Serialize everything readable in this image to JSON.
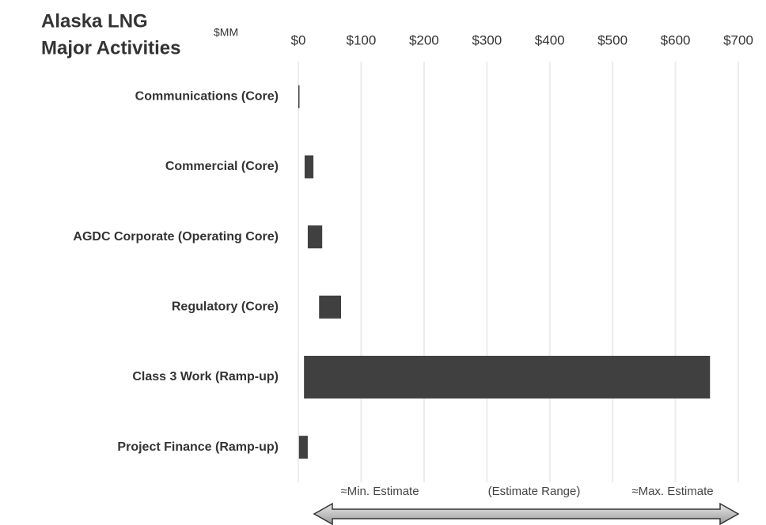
{
  "chart_data": {
    "type": "floating_bar",
    "title": [
      "Alaska LNG",
      "Major Activities"
    ],
    "unit_label": "$MM",
    "categories": [
      "Communications (Core)",
      "Commercial (Core)",
      "AGDC Corporate (Operating Core)",
      "Regulatory (Core)",
      "Class 3 Work (Ramp-up)",
      "Project Finance (Ramp-up)"
    ],
    "low": [
      0,
      10,
      15,
      33,
      9,
      1
    ],
    "high": [
      1,
      24,
      38,
      68,
      655,
      15
    ],
    "color": "#404040",
    "xlim": [
      0,
      700
    ],
    "xticks": [
      {
        "value": 0,
        "label": "$0"
      },
      {
        "value": 100,
        "label": "$100"
      },
      {
        "value": 200,
        "label": "$200"
      },
      {
        "value": 300,
        "label": "$300"
      },
      {
        "value": 400,
        "label": "$400"
      },
      {
        "value": 500,
        "label": "$500"
      },
      {
        "value": 600,
        "label": "$600"
      },
      {
        "value": 700,
        "label": "$700"
      }
    ],
    "grid": true,
    "annotations": [
      "≈Min. Estimate",
      "(Estimate Range)",
      "≈Max. Estimate"
    ]
  }
}
